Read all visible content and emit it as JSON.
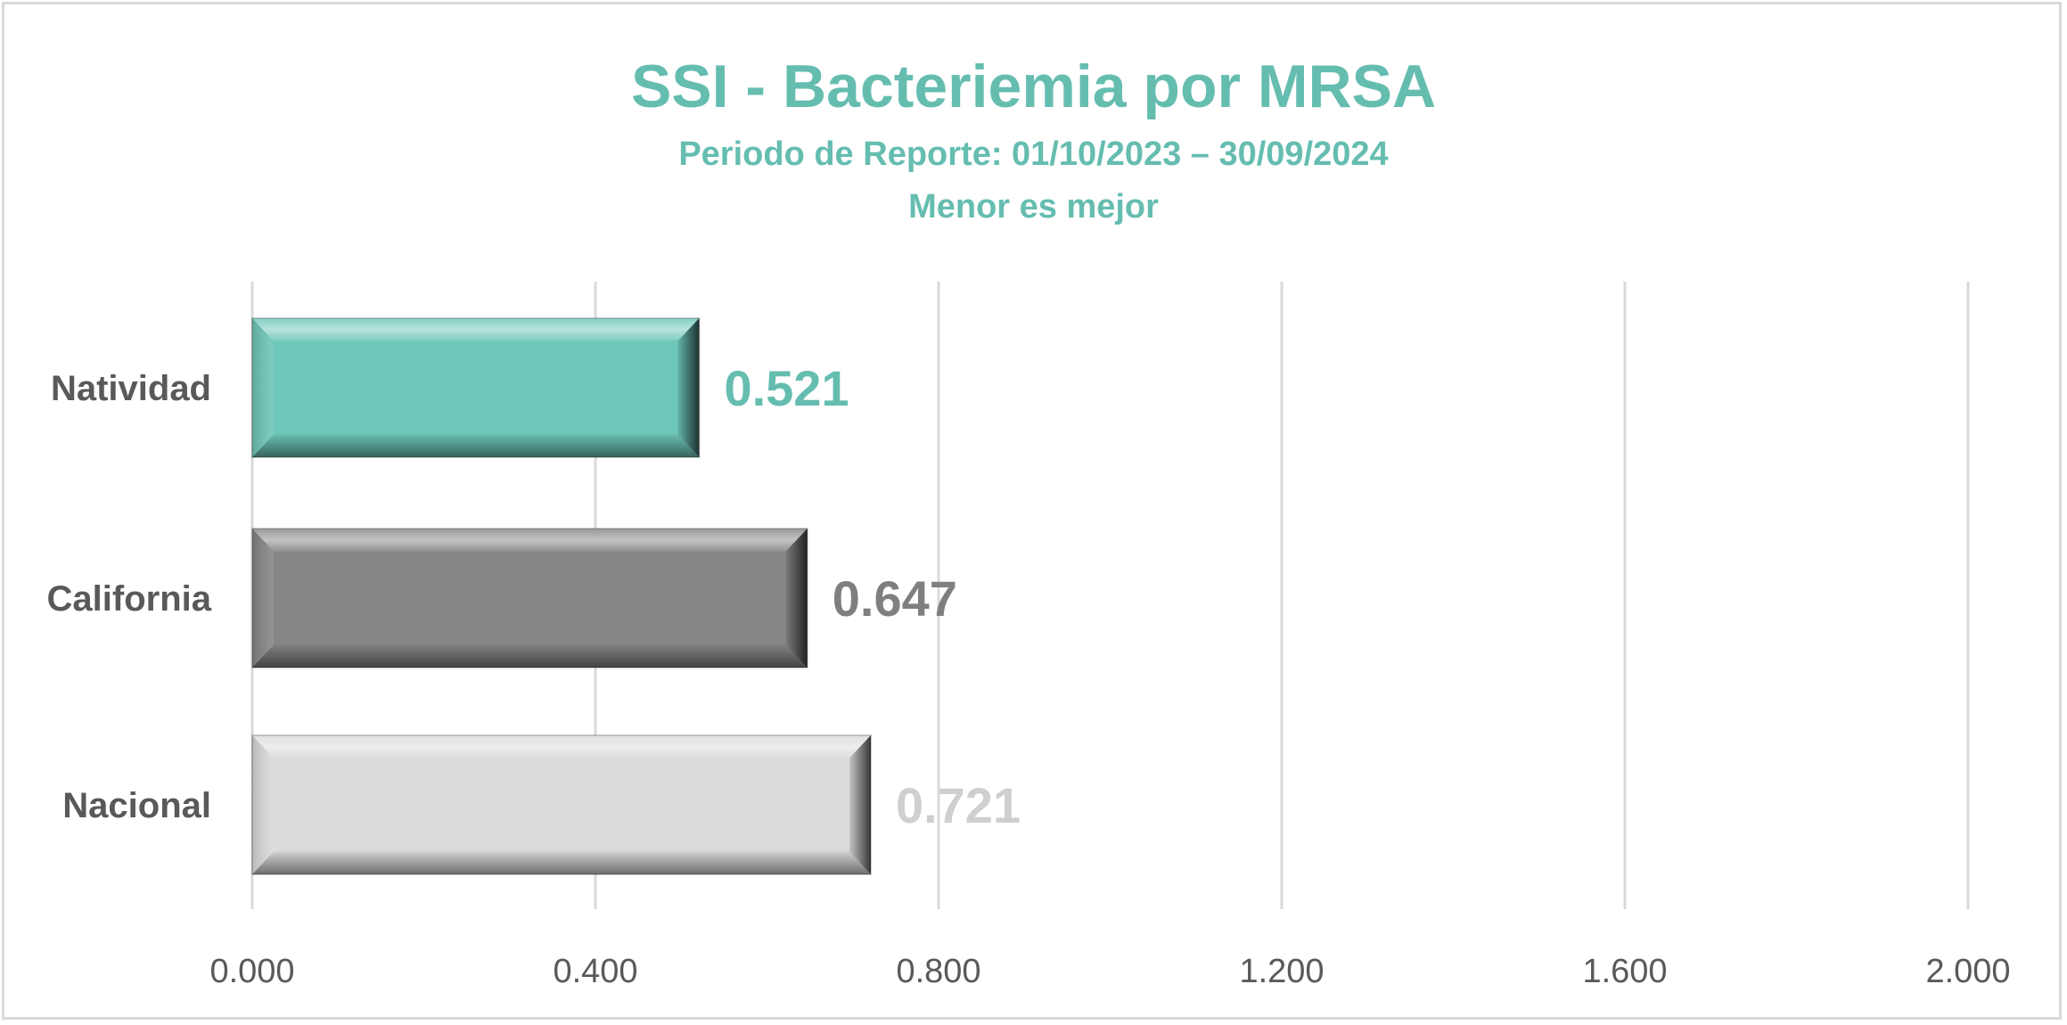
{
  "chart_data": {
    "type": "bar",
    "orientation": "horizontal",
    "title": "SSI - Bacteriemia por MRSA",
    "subtitle": "Periodo de Reporte: 01/10/2023 – 30/09/2024",
    "note": "Menor es mejor",
    "categories": [
      "Natividad",
      "California",
      "Nacional"
    ],
    "values": [
      0.521,
      0.647,
      0.721
    ],
    "value_labels": [
      "0.521",
      "0.647",
      "0.721"
    ],
    "colors": [
      "#6fc7ba",
      "#878787",
      "#dcdadb"
    ],
    "label_colors": [
      "#65bdb0",
      "#7f7f7f",
      "#d0cecf"
    ],
    "xlim": [
      0,
      2.0
    ],
    "xticks": [
      "0.000",
      "0.400",
      "0.800",
      "1.200",
      "1.600",
      "2.000"
    ],
    "xtick_values": [
      0,
      0.4,
      0.8,
      1.2,
      1.6,
      2.0
    ],
    "grid": true,
    "legend": "none",
    "xlabel": "",
    "ylabel": ""
  }
}
